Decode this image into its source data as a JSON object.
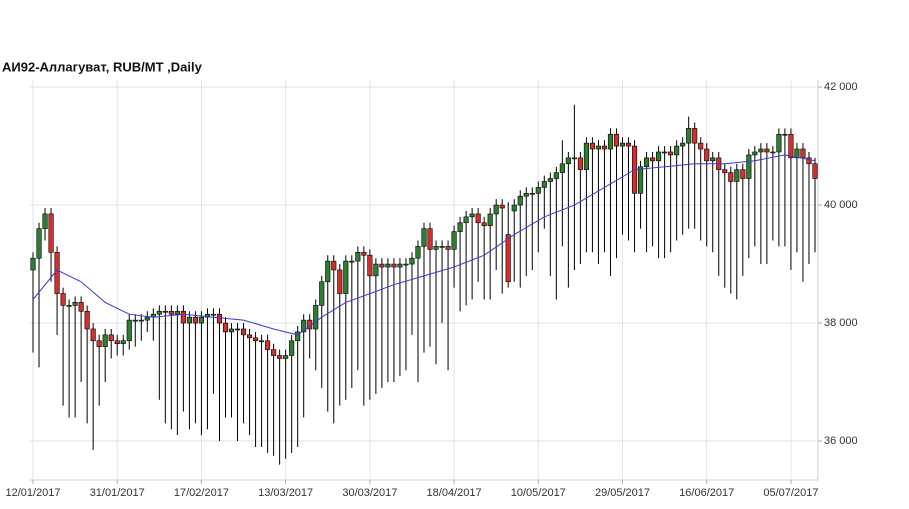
{
  "chart_data": {
    "type": "candlestick",
    "title": "АИ92-Аллагуват,  RUB/MT ,Daily",
    "categories": [
      "12/01/2017",
      null,
      null,
      null,
      null,
      null,
      null,
      null,
      null,
      null,
      null,
      null,
      null,
      null,
      "31/01/2017",
      null,
      null,
      null,
      null,
      null,
      null,
      null,
      null,
      null,
      null,
      null,
      null,
      null,
      "17/02/2017",
      null,
      null,
      null,
      null,
      null,
      null,
      null,
      null,
      null,
      null,
      null,
      null,
      null,
      "13/03/2017",
      null,
      null,
      null,
      null,
      null,
      null,
      null,
      null,
      null,
      null,
      null,
      null,
      null,
      "30/03/2017",
      null,
      null,
      null,
      null,
      null,
      null,
      null,
      null,
      null,
      null,
      null,
      null,
      null,
      "18/04/2017",
      null,
      null,
      null,
      null,
      null,
      null,
      null,
      null,
      null,
      null,
      null,
      null,
      null,
      "10/05/2017",
      null,
      null,
      null,
      null,
      null,
      null,
      null,
      null,
      null,
      null,
      null,
      null,
      null,
      "29/05/2017",
      null,
      null,
      null,
      null,
      null,
      null,
      null,
      null,
      null,
      null,
      null,
      null,
      null,
      "16/06/2017",
      null,
      null,
      null,
      null,
      null,
      null,
      null,
      null,
      null,
      null,
      null,
      null,
      null,
      "05/07/2017",
      null,
      null,
      null,
      null
    ],
    "open": [
      38900,
      39100,
      39600,
      39850,
      39200,
      38500,
      38300,
      38300,
      38350,
      38200,
      37900,
      37700,
      37600,
      37800,
      37700,
      37650,
      37700,
      38050,
      38050,
      38050,
      38100,
      38150,
      38200,
      38200,
      38150,
      38200,
      38000,
      38100,
      38000,
      38100,
      38150,
      38150,
      38000,
      37850,
      37900,
      37900,
      37800,
      37750,
      37700,
      37700,
      37550,
      37450,
      37400,
      37450,
      37700,
      37850,
      38050,
      37900,
      38300,
      38700,
      39050,
      38900,
      38500,
      39050,
      39050,
      39200,
      39150,
      38800,
      39000,
      38950,
      39000,
      38950,
      39000,
      39000,
      39100,
      39300,
      39600,
      39250,
      39300,
      39300,
      39250,
      39550,
      39700,
      39800,
      39850,
      39700,
      39650,
      39850,
      40000,
      39500,
      39900,
      40000,
      40150,
      40200,
      40200,
      40300,
      40400,
      40450,
      40550,
      40700,
      40800,
      40800,
      40600,
      41050,
      40950,
      41000,
      40950,
      41200,
      41000,
      41050,
      41000,
      40200,
      40650,
      40800,
      40750,
      40900,
      40900,
      40850,
      41000,
      41050,
      41300,
      41050,
      40950,
      40750,
      40800,
      40600,
      40550,
      40400,
      40600,
      40450,
      40850,
      40900,
      40950,
      40900,
      40900,
      41200,
      41200,
      40800,
      40950,
      40800,
      40700
    ],
    "high": [
      39200,
      39700,
      39950,
      39950,
      39300,
      38600,
      38400,
      38450,
      38450,
      38300,
      38000,
      37800,
      37900,
      37900,
      37800,
      37800,
      38150,
      38150,
      38150,
      38200,
      38250,
      38300,
      38300,
      38300,
      38300,
      38300,
      38200,
      38200,
      38200,
      38250,
      38250,
      38250,
      38100,
      38000,
      38000,
      38000,
      37900,
      37850,
      37800,
      37800,
      37650,
      37550,
      37550,
      37800,
      37950,
      38150,
      38150,
      38400,
      38800,
      39150,
      39150,
      39000,
      39150,
      39150,
      39300,
      39300,
      39250,
      39100,
      39100,
      39100,
      39100,
      39100,
      39100,
      39200,
      39400,
      39700,
      39700,
      39400,
      39400,
      39400,
      39650,
      39800,
      39900,
      39950,
      39950,
      39800,
      39950,
      40100,
      40100,
      40050,
      40100,
      40250,
      40300,
      40300,
      40400,
      40500,
      40550,
      40650,
      41100,
      40900,
      41700,
      40900,
      41150,
      41150,
      41100,
      41100,
      41300,
      41300,
      41150,
      41150,
      41100,
      40750,
      40900,
      40900,
      41000,
      41000,
      41000,
      41100,
      41150,
      41500,
      41400,
      41150,
      41050,
      40900,
      40900,
      40700,
      40650,
      40700,
      40700,
      40950,
      41000,
      41050,
      41050,
      41000,
      41300,
      41300,
      41300,
      41050,
      41050,
      40900,
      40800
    ],
    "low": [
      37500,
      37250,
      39400,
      38700,
      37800,
      36600,
      36400,
      36400,
      37000,
      36300,
      35850,
      36600,
      37000,
      37400,
      37450,
      37450,
      37550,
      37600,
      37700,
      37850,
      37700,
      36700,
      36300,
      36200,
      36100,
      36500,
      36200,
      36300,
      36100,
      36200,
      36800,
      36000,
      36400,
      36400,
      36000,
      36300,
      36100,
      35900,
      35900,
      35800,
      35750,
      35600,
      35700,
      35800,
      35900,
      36400,
      37400,
      37200,
      36900,
      36500,
      36300,
      36600,
      36700,
      36900,
      37200,
      36600,
      36700,
      36800,
      36900,
      37000,
      37000,
      37100,
      37200,
      37800,
      37000,
      37500,
      37600,
      37300,
      38000,
      37200,
      38600,
      38200,
      38300,
      38400,
      38700,
      38400,
      38400,
      38900,
      38500,
      38600,
      38700,
      38600,
      38800,
      38900,
      39200,
      39600,
      38800,
      38400,
      39300,
      38600,
      38900,
      39000,
      39200,
      39200,
      39000,
      39200,
      38800,
      39100,
      39500,
      39400,
      39200,
      39600,
      39200,
      39300,
      39100,
      39100,
      39200,
      39400,
      39500,
      39600,
      39600,
      39400,
      39300,
      39200,
      38800,
      38600,
      38500,
      38400,
      38800,
      39100,
      39300,
      39000,
      39000,
      39400,
      39300,
      39300,
      38900,
      39200,
      38700,
      39000,
      39200
    ],
    "close": [
      39100,
      39600,
      39850,
      39200,
      38500,
      38300,
      38300,
      38350,
      38200,
      37900,
      37700,
      37600,
      37800,
      37700,
      37650,
      37700,
      38050,
      38050,
      38050,
      38100,
      38150,
      38200,
      38200,
      38150,
      38200,
      38000,
      38100,
      38000,
      38100,
      38150,
      38150,
      38000,
      37850,
      37900,
      37900,
      37800,
      37750,
      37700,
      37700,
      37550,
      37450,
      37400,
      37450,
      37700,
      37850,
      38050,
      37900,
      38300,
      38700,
      39050,
      38900,
      38500,
      39050,
      39050,
      39200,
      39150,
      38800,
      39000,
      38950,
      39000,
      38950,
      39000,
      39000,
      39100,
      39300,
      39600,
      39250,
      39300,
      39300,
      39250,
      39550,
      39700,
      39800,
      39850,
      39700,
      39650,
      39850,
      40000,
      39950,
      38700,
      40000,
      40150,
      40200,
      40200,
      40300,
      40400,
      40450,
      40550,
      40700,
      40800,
      40800,
      40600,
      41050,
      40950,
      41000,
      40950,
      41200,
      41000,
      41050,
      41000,
      40200,
      40650,
      40800,
      40750,
      40900,
      40900,
      40850,
      41000,
      41050,
      41300,
      41050,
      40950,
      40750,
      40800,
      40600,
      40550,
      40400,
      40600,
      40450,
      40850,
      40900,
      40950,
      40900,
      40900,
      41200,
      41200,
      40800,
      40950,
      40800,
      40700,
      40450
    ],
    "up_color": "#2e7d32",
    "down_color": "#d32f2f",
    "ma": {
      "color": "#3b3bd6",
      "x": [
        0,
        4,
        8,
        12,
        16,
        20,
        25,
        30,
        35,
        40,
        44,
        48,
        52,
        56,
        60,
        65,
        70,
        75,
        80,
        85,
        90,
        95,
        100,
        105,
        110,
        115,
        120,
        125,
        130
      ],
      "values": [
        38400,
        38900,
        38700,
        38350,
        38150,
        38100,
        38150,
        38100,
        38050,
        37900,
        37800,
        38100,
        38350,
        38500,
        38650,
        38800,
        38950,
        39150,
        39500,
        39800,
        40000,
        40300,
        40600,
        40650,
        40700,
        40700,
        40750,
        40850,
        40750
      ]
    },
    "ylim": [
      35340,
      42120
    ],
    "yticks": [
      {
        "value": 36000,
        "label": "36 000"
      },
      {
        "value": 38000,
        "label": "38 000"
      },
      {
        "value": 40000,
        "label": "40 000"
      },
      {
        "value": 42000,
        "label": "42 000"
      }
    ],
    "grid": true
  }
}
